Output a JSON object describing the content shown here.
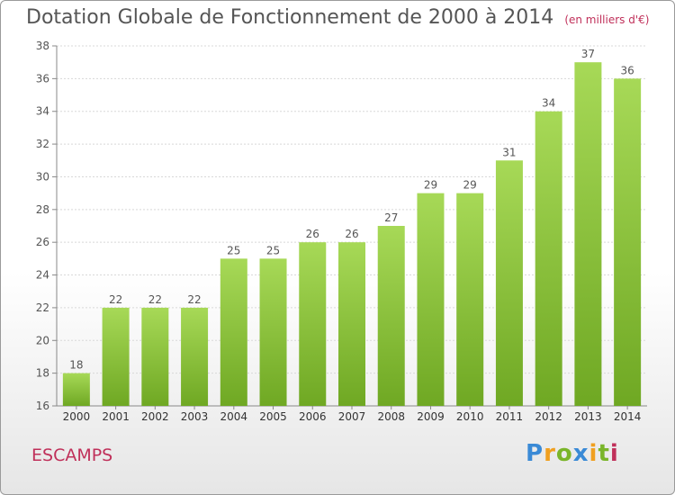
{
  "title": "Dotation Globale de Fonctionnement de 2000 à 2014",
  "subtitle": "(en milliers d'€)",
  "commune": "ESCAMPS",
  "logo": {
    "letters": [
      "P",
      "r",
      "o",
      "x",
      "i",
      "t",
      "i"
    ],
    "colors": [
      "#3a8ad6",
      "#f0a020",
      "#7ab52a",
      "#3a8ad6",
      "#f0a020",
      "#7ab52a",
      "#c0305a"
    ]
  },
  "colors": {
    "bar": "#6fa823",
    "bar_light": "#a7d957",
    "text": "#555555",
    "accent": "#c0305a"
  },
  "chart_data": {
    "type": "bar",
    "categories": [
      "2000",
      "2001",
      "2002",
      "2003",
      "2004",
      "2005",
      "2006",
      "2007",
      "2008",
      "2009",
      "2010",
      "2011",
      "2012",
      "2013",
      "2014"
    ],
    "values": [
      18,
      22,
      22,
      22,
      25,
      25,
      26,
      26,
      27,
      29,
      29,
      31,
      34,
      37,
      36
    ],
    "ylim": [
      16,
      38
    ],
    "yticks": [
      16,
      18,
      20,
      22,
      24,
      26,
      28,
      30,
      32,
      34,
      36,
      38
    ],
    "grid": true,
    "data_labels": true
  }
}
